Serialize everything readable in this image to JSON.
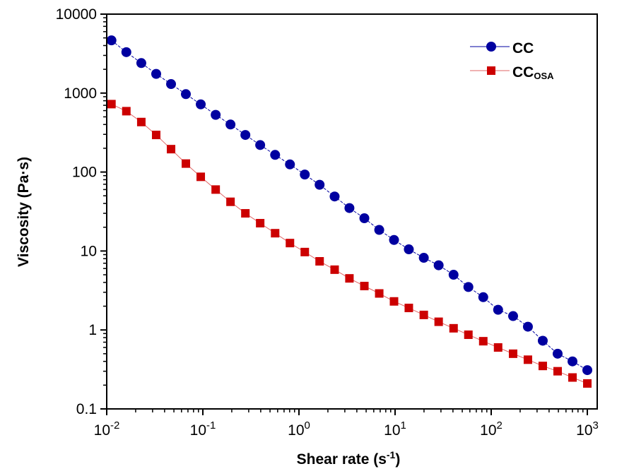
{
  "chart_data": {
    "type": "scatter",
    "xlabel": "Shear rate (s",
    "xlabel_sup": "-1",
    "xlabel_end": ")",
    "ylabel": "Viscosity (Pa·s)",
    "xscale": "log",
    "yscale": "log",
    "xlim": [
      0.01,
      1000
    ],
    "ylim": [
      0.1,
      10000
    ],
    "grid": false,
    "legend_position": "top-right",
    "x_ticks": [
      {
        "base": "10",
        "exp": "-2",
        "value": 0.01
      },
      {
        "base": "10",
        "exp": "-1",
        "value": 0.1
      },
      {
        "base": "10",
        "exp": "0",
        "value": 1
      },
      {
        "base": "10",
        "exp": "1",
        "value": 10
      },
      {
        "base": "10",
        "exp": "2",
        "value": 100
      },
      {
        "base": "10",
        "exp": "3",
        "value": 1000
      }
    ],
    "y_ticks": [
      {
        "label": "0.1",
        "value": 0.1
      },
      {
        "label": "1",
        "value": 1
      },
      {
        "label": "10",
        "value": 10
      },
      {
        "label": "100",
        "value": 100
      },
      {
        "label": "1000",
        "value": 1000
      },
      {
        "label": "10000",
        "value": 10000
      }
    ],
    "x": [
      0.0112,
      0.016,
      0.0229,
      0.0327,
      0.0467,
      0.0666,
      0.0951,
      0.136,
      0.194,
      0.277,
      0.395,
      0.565,
      0.806,
      1.15,
      1.64,
      2.35,
      3.35,
      4.79,
      6.84,
      9.75,
      13.9,
      19.9,
      28.4,
      40.6,
      57.9,
      82.7,
      118,
      169,
      241,
      344,
      491,
      701,
      1000
    ],
    "series": [
      {
        "name": "CC",
        "name_sub": "",
        "color": "#0000a0",
        "marker": "circle",
        "values": [
          4650,
          3300,
          2400,
          1750,
          1300,
          970,
          720,
          530,
          400,
          295,
          220,
          165,
          125,
          93,
          69,
          49,
          35,
          26,
          18.5,
          13.8,
          10.5,
          8.2,
          6.6,
          5.0,
          3.5,
          2.6,
          1.8,
          1.5,
          1.1,
          0.73,
          0.5,
          0.4,
          0.31
        ]
      },
      {
        "name": "CC",
        "name_sub": "OSA",
        "color": "#cc0000",
        "marker": "square",
        "values": [
          725,
          590,
          430,
          295,
          195,
          128,
          87,
          60,
          42,
          30,
          22.5,
          16.8,
          12.6,
          9.7,
          7.4,
          5.8,
          4.5,
          3.6,
          2.9,
          2.3,
          1.9,
          1.55,
          1.27,
          1.05,
          0.87,
          0.72,
          0.6,
          0.5,
          0.42,
          0.35,
          0.3,
          0.25,
          0.21
        ]
      }
    ]
  }
}
